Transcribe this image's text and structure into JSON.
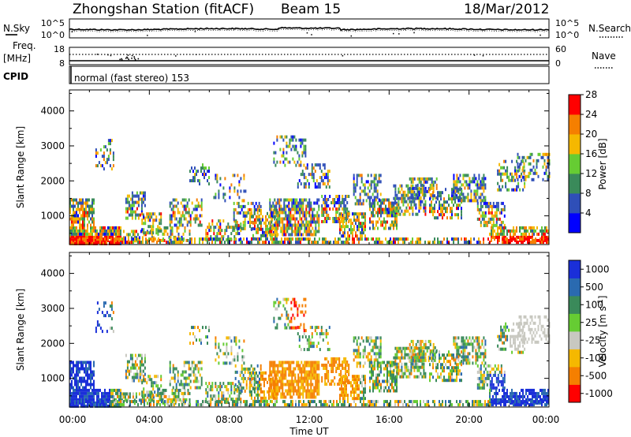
{
  "header": {
    "station": "Zhongshan Station (fitACF)",
    "beam": "Beam 15",
    "date": "18/Mar/2012"
  },
  "noise_panel": {
    "left_label": "N.Sky",
    "right_label": "N.Search",
    "left_ticks": [
      "10^5",
      "10^0"
    ],
    "right_ticks": [
      "10^5",
      "10^0"
    ]
  },
  "freq_panel": {
    "left_label_1": "Freq.",
    "left_label_2": "[MHz]",
    "right_label": "Nave",
    "left_ticks": [
      "18",
      "8"
    ],
    "right_ticks": [
      "60",
      "0"
    ]
  },
  "cpid_panel": {
    "label": "CPID",
    "value": "normal (fast stereo) 153"
  },
  "colors": {
    "power_scale": [
      "#0000ff",
      "#2f4fb8",
      "#3a8a5a",
      "#66cc33",
      "#f5b800",
      "#f57f00",
      "#ff0000"
    ],
    "velocity_scale": [
      "#1a2fd9",
      "#2a6ab0",
      "#3a8a5a",
      "#66cc33",
      "#c8c8c0",
      "#f5b800",
      "#f57f00",
      "#ff0000"
    ]
  },
  "chart_data": [
    {
      "type": "heatmap",
      "title": "",
      "xlabel": "Time UT",
      "ylabel": "Slant Range [km]",
      "x_ticks": [
        "00:00",
        "04:00",
        "08:00",
        "12:00",
        "16:00",
        "20:00",
        "00:00"
      ],
      "y_ticks": [
        "1000",
        "2000",
        "3000",
        "4000"
      ],
      "ylim": [
        180,
        4600
      ],
      "colorbar": {
        "label": "Power [dB]",
        "ticks": [
          "4",
          "8",
          "12",
          "16",
          "20",
          "24",
          "28"
        ],
        "range": [
          0,
          30
        ]
      }
    },
    {
      "type": "heatmap",
      "title": "",
      "xlabel": "Time UT",
      "ylabel": "Slant Range [km]",
      "x_ticks": [
        "00:00",
        "04:00",
        "08:00",
        "12:00",
        "16:00",
        "20:00",
        "00:00"
      ],
      "y_ticks": [
        "1000",
        "2000",
        "3000",
        "4000"
      ],
      "ylim": [
        180,
        4600
      ],
      "colorbar": {
        "label": "Velocity [m s",
        "label_sup": "-1",
        "label_end": "]",
        "ticks": [
          "1000",
          "500",
          "100",
          "25",
          "-25",
          "-100",
          "-500",
          "-1000"
        ]
      }
    }
  ]
}
